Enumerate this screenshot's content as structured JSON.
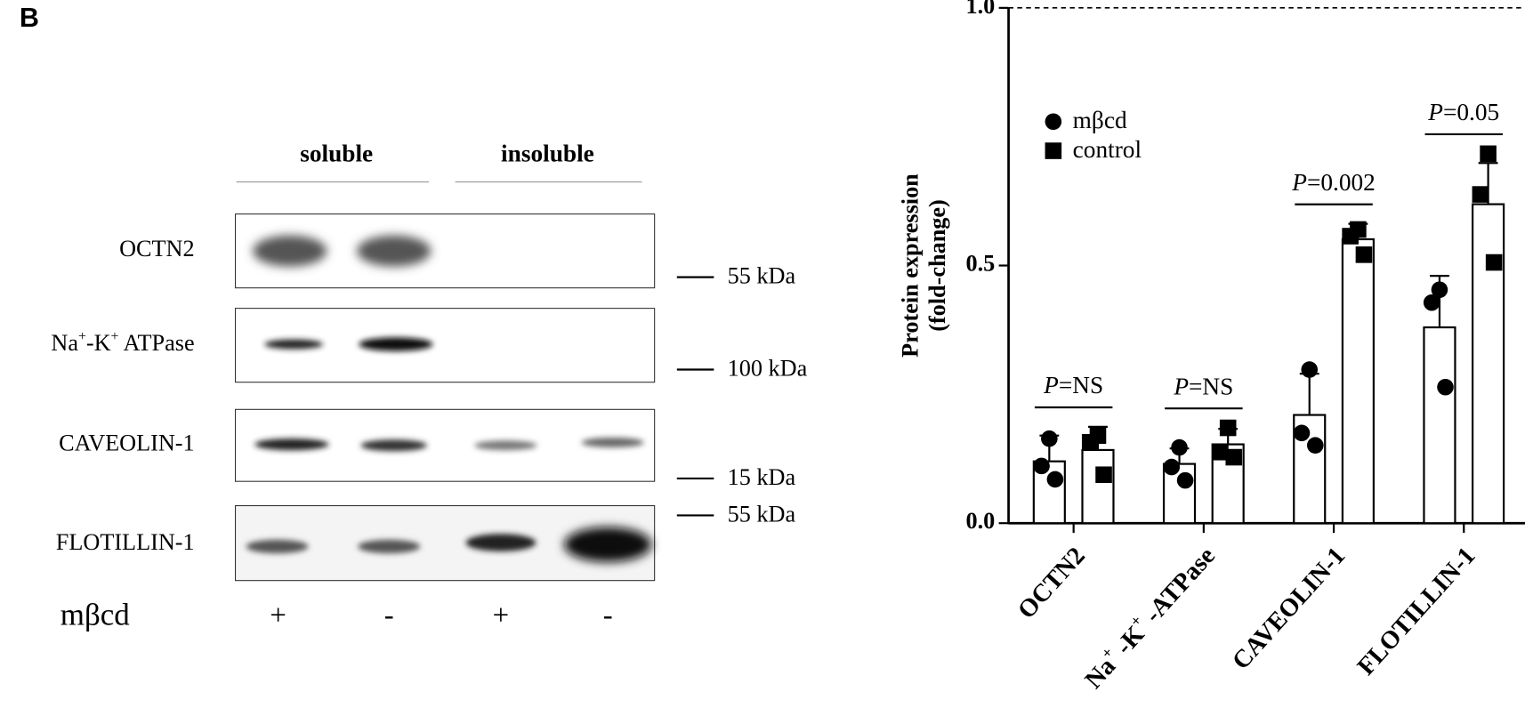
{
  "panel_label": "B",
  "blot": {
    "groups": [
      "soluble",
      "insoluble"
    ],
    "rows": [
      {
        "label": [
          {
            "text": "OCTN2"
          }
        ],
        "marker": "55 kDa"
      },
      {
        "label": [
          {
            "text": "Na"
          },
          {
            "text": "+",
            "sup": true
          },
          {
            "text": "-K"
          },
          {
            "text": "+",
            "sup": true
          },
          {
            "text": " ATPase"
          }
        ],
        "marker": "100 kDa"
      },
      {
        "label": [
          {
            "text": "CAVEOLIN-1"
          }
        ],
        "marker": "15 kDa"
      },
      {
        "label": [
          {
            "text": "FLOTILLIN-1"
          }
        ],
        "marker": "55 kDa"
      }
    ],
    "treatment_label": "mβcd",
    "lanes": [
      "+",
      "-",
      "+",
      "-"
    ]
  },
  "chart_data": {
    "type": "bar",
    "y_label": [
      "Protein expression",
      "(fold-change)"
    ],
    "categories": [
      [
        {
          "text": "OCTN2"
        }
      ],
      [
        {
          "text": "Na"
        },
        {
          "text": "+",
          "sup": true
        },
        {
          "text": " -K"
        },
        {
          "text": "+",
          "sup": true
        },
        {
          "text": " -ATPase"
        }
      ],
      [
        {
          "text": "CAVEOLIN-1"
        }
      ],
      [
        {
          "text": "FLOTILLIN-1"
        }
      ]
    ],
    "series": [
      {
        "name": "mβcd",
        "marker": "circle",
        "color": "#000000",
        "values": [
          0.12,
          0.115,
          0.21,
          0.38
        ],
        "errors": [
          0.05,
          0.03,
          0.08,
          0.1
        ],
        "points": [
          [
            0.164,
            0.111,
            0.085
          ],
          [
            0.147,
            0.109,
            0.083
          ],
          [
            0.298,
            0.175,
            0.151
          ],
          [
            0.453,
            0.428,
            0.264
          ]
        ]
      },
      {
        "name": "control",
        "marker": "square",
        "color": "#000000",
        "values": [
          0.142,
          0.153,
          0.551,
          0.619
        ],
        "errors": [
          0.045,
          0.03,
          0.03,
          0.08
        ],
        "points": [
          [
            0.17,
            0.157,
            0.094
          ],
          [
            0.185,
            0.138,
            0.128
          ],
          [
            0.57,
            0.557,
            0.521
          ],
          [
            0.717,
            0.638,
            0.506
          ]
        ]
      }
    ],
    "significance": [
      {
        "italic": "P",
        "text": "=NS"
      },
      {
        "italic": "P",
        "text": "=NS"
      },
      {
        "italic": "P",
        "text": "=0.002"
      },
      {
        "italic": "P",
        "text": "=0.05"
      }
    ],
    "ylim": [
      0,
      1.0
    ],
    "yticks": [
      {
        "value": 0,
        "label": "0.0"
      },
      0.5,
      {
        "value": 1.0,
        "label": "1.0"
      }
    ],
    "reference_line": 1.0,
    "legend": "top-left"
  }
}
